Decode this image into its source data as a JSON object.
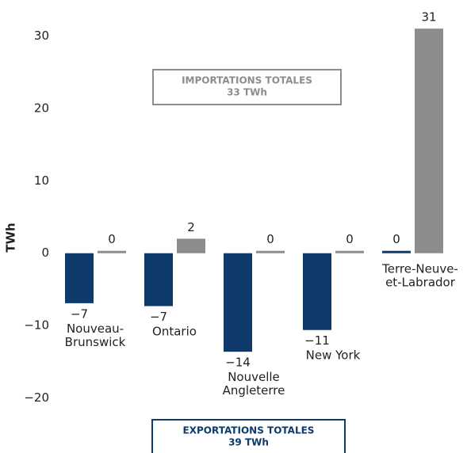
{
  "chart_data": {
    "type": "bar",
    "y_label": "TWh",
    "categories": [
      "Nouveau-\nBrunswick",
      "Ontario",
      "Nouvelle\nAngleterre",
      "New York",
      "Terre-Neuve-\net-Labrador"
    ],
    "series": [
      {
        "color": "#0d3a6b",
        "values": [
          -6.9,
          -7.3,
          -13.6,
          -10.6,
          0
        ],
        "value_labels": [
          "−7",
          "−7",
          "−14",
          "−11",
          "0"
        ]
      },
      {
        "color": "#8c8c8c",
        "values": [
          0,
          2.0,
          0,
          0,
          31
        ],
        "value_labels": [
          "0",
          "2",
          "0",
          "0",
          "31"
        ]
      }
    ],
    "ylim": [
      -22,
      32
    ],
    "yticks": [
      {
        "value": -20,
        "label": "−20"
      },
      {
        "value": -10,
        "label": "−10"
      },
      0,
      10,
      20,
      30
    ],
    "annotations": [
      {
        "lines": [
          "IMPORTATIONS TOTALES",
          "33 TWh"
        ],
        "color": "#8c8c8c"
      },
      {
        "lines": [
          "EXPORTATIONS TOTALES",
          "39 TWh"
        ],
        "color": "#0d3a6b"
      }
    ]
  }
}
